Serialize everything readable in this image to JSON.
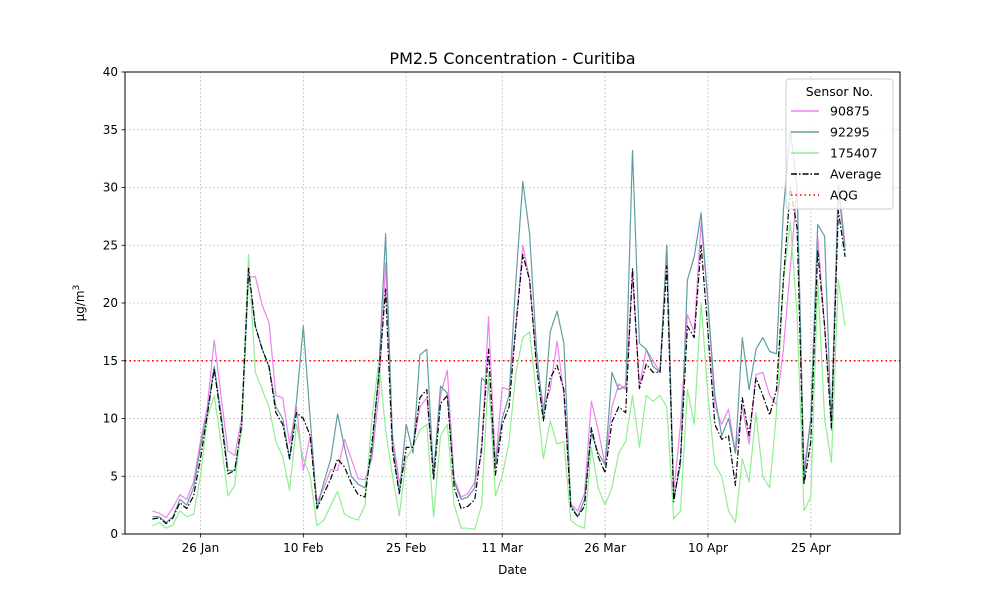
{
  "chart_data": {
    "type": "line",
    "title": "PM2.5 Concentration - Curitiba",
    "xlabel": "Date",
    "ylabel": "µg/m",
    "ylabel_superscript": "3",
    "ylim": [
      0,
      40
    ],
    "yticks": [
      0,
      5,
      10,
      15,
      20,
      25,
      30,
      35,
      40
    ],
    "xlim": [
      "2025-01-15",
      "2025-05-08"
    ],
    "xticks": [
      {
        "date": "2025-01-26",
        "label": "26 Jan"
      },
      {
        "date": "2025-02-10",
        "label": "10 Feb"
      },
      {
        "date": "2025-02-25",
        "label": "25 Feb"
      },
      {
        "date": "2025-03-11",
        "label": "11 Mar"
      },
      {
        "date": "2025-03-26",
        "label": "26 Mar"
      },
      {
        "date": "2025-04-10",
        "label": "10 Apr"
      },
      {
        "date": "2025-04-25",
        "label": "25 Apr"
      }
    ],
    "x_start": "2025-01-19",
    "grid": true,
    "legend": {
      "title": "Sensor No.",
      "placement": "top-right"
    },
    "reference_line": {
      "name": "AQG",
      "value": 15,
      "color": "#ff0000",
      "style": "dotted"
    },
    "series": [
      {
        "name": "90875",
        "color": "#ee82ee",
        "style": "solid",
        "values": [
          2.0,
          1.8,
          1.4,
          2.3,
          3.4,
          3.0,
          4.5,
          8.0,
          11.0,
          16.8,
          12.0,
          7.2,
          6.8,
          10.0,
          22.2,
          22.3,
          19.8,
          18.3,
          12.0,
          11.8,
          7.8,
          11.0,
          5.5,
          8.5,
          2.8,
          4.0,
          5.6,
          5.5,
          8.2,
          6.5,
          4.8,
          4.7,
          6.5,
          12.0,
          23.5,
          8.5,
          4.5,
          6.5,
          7.5,
          11.0,
          11.8,
          5.5,
          12.0,
          14.2,
          4.8,
          3.2,
          3.5,
          4.5,
          7.0,
          18.8,
          6.0,
          12.7,
          12.5,
          18.0,
          25.0,
          22.0,
          15.0,
          11.0,
          12.5,
          16.7,
          12.0,
          2.6,
          2.0,
          3.5,
          11.5,
          9.0,
          6.0,
          11.0,
          13.0,
          12.5,
          22.5,
          12.8,
          16.0,
          15.0,
          14.0,
          25.0,
          3.5,
          9.5,
          19.0,
          17.5,
          27.0,
          20.0,
          11.0,
          9.5,
          10.8,
          7.0,
          11.0,
          7.8,
          13.8,
          14.0,
          12.0,
          11.2,
          16.0,
          23.0,
          30.0,
          5.5,
          10.0,
          25.8,
          18.0,
          10.0,
          30.5,
          25.0
        ]
      },
      {
        "name": "92295",
        "color": "#5f9ea0",
        "style": "solid",
        "values": [
          1.5,
          1.5,
          1.0,
          1.5,
          3.0,
          2.5,
          4.0,
          7.5,
          10.5,
          14.5,
          10.5,
          5.5,
          5.5,
          9.0,
          22.5,
          18.0,
          16.0,
          14.5,
          11.0,
          10.0,
          6.5,
          11.5,
          18.0,
          10.0,
          2.2,
          4.5,
          6.5,
          10.4,
          7.5,
          5.0,
          4.3,
          4.0,
          7.0,
          14.0,
          26.0,
          8.0,
          3.5,
          9.5,
          7.0,
          15.5,
          16.0,
          5.0,
          12.8,
          12.2,
          4.5,
          3.0,
          3.2,
          4.0,
          13.5,
          13.0,
          6.0,
          10.0,
          12.0,
          22.0,
          30.5,
          26.0,
          16.0,
          10.0,
          17.5,
          19.3,
          16.5,
          2.5,
          1.5,
          3.0,
          8.7,
          7.0,
          6.0,
          14.0,
          12.5,
          12.8,
          33.2,
          16.5,
          16.0,
          14.5,
          14.0,
          25.0,
          3.0,
          6.0,
          22.0,
          24.0,
          27.8,
          20.0,
          12.0,
          8.5,
          10.0,
          7.0,
          17.0,
          12.5,
          16.0,
          17.0,
          15.8,
          15.6,
          28.0,
          35.0,
          30.0,
          4.8,
          10.0,
          26.8,
          25.8,
          9.0,
          30.0,
          24.5
        ]
      },
      {
        "name": "175407",
        "color": "#90ee90",
        "style": "solid",
        "values": [
          0.7,
          1.0,
          0.5,
          0.8,
          2.0,
          1.5,
          1.7,
          5.0,
          10.0,
          12.0,
          8.0,
          3.3,
          4.2,
          9.5,
          24.2,
          14.0,
          12.5,
          11.0,
          8.0,
          6.7,
          3.8,
          9.5,
          6.5,
          5.0,
          0.7,
          1.2,
          2.5,
          3.7,
          1.7,
          1.4,
          1.2,
          2.5,
          10.0,
          15.0,
          9.0,
          5.0,
          1.6,
          6.5,
          7.5,
          9.0,
          9.5,
          1.5,
          8.5,
          9.5,
          2.5,
          0.5,
          0.5,
          0.4,
          2.5,
          14.0,
          3.3,
          5.0,
          8.0,
          14.0,
          17.0,
          17.5,
          12.0,
          6.5,
          9.8,
          7.8,
          8.0,
          1.2,
          0.7,
          0.5,
          7.5,
          4.0,
          2.5,
          4.0,
          7.0,
          8.0,
          12.0,
          7.5,
          12.0,
          11.5,
          12.0,
          11.0,
          1.3,
          2.0,
          12.5,
          9.5,
          20.0,
          12.0,
          6.0,
          5.0,
          2.0,
          1.0,
          6.5,
          4.5,
          10.5,
          5.0,
          4.0,
          10.5,
          22.0,
          27.0,
          19.0,
          2.0,
          3.2,
          22.0,
          10.0,
          6.2,
          22.0,
          18.0
        ]
      },
      {
        "name": "Average",
        "color": "#000000",
        "style": "dashdot",
        "values": [
          1.3,
          1.4,
          0.9,
          1.4,
          2.7,
          2.2,
          3.3,
          6.5,
          10.3,
          14.3,
          10.0,
          5.2,
          5.5,
          9.5,
          23.0,
          18.0,
          16.0,
          14.5,
          10.5,
          9.5,
          6.5,
          10.5,
          10.0,
          8.5,
          2.2,
          3.5,
          4.8,
          6.5,
          5.8,
          4.4,
          3.4,
          3.2,
          7.8,
          13.7,
          21.2,
          7.2,
          3.5,
          7.5,
          7.5,
          11.8,
          12.5,
          4.7,
          11.3,
          12.0,
          4.0,
          2.2,
          2.4,
          3.0,
          7.5,
          16.0,
          5.1,
          9.5,
          11.0,
          18.0,
          24.2,
          22.0,
          14.5,
          9.8,
          13.5,
          14.6,
          12.5,
          2.3,
          1.5,
          2.4,
          9.2,
          6.7,
          5.3,
          9.7,
          11.0,
          10.5,
          23.0,
          12.6,
          14.7,
          14.0,
          14.0,
          23.2,
          2.8,
          6.5,
          18.0,
          17.0,
          25.0,
          17.5,
          9.5,
          8.2,
          8.5,
          4.2,
          11.8,
          8.5,
          13.5,
          12.0,
          10.3,
          12.5,
          22.0,
          30.0,
          26.5,
          4.3,
          8.0,
          24.5,
          18.0,
          9.2,
          28.0,
          24.0
        ]
      }
    ]
  }
}
